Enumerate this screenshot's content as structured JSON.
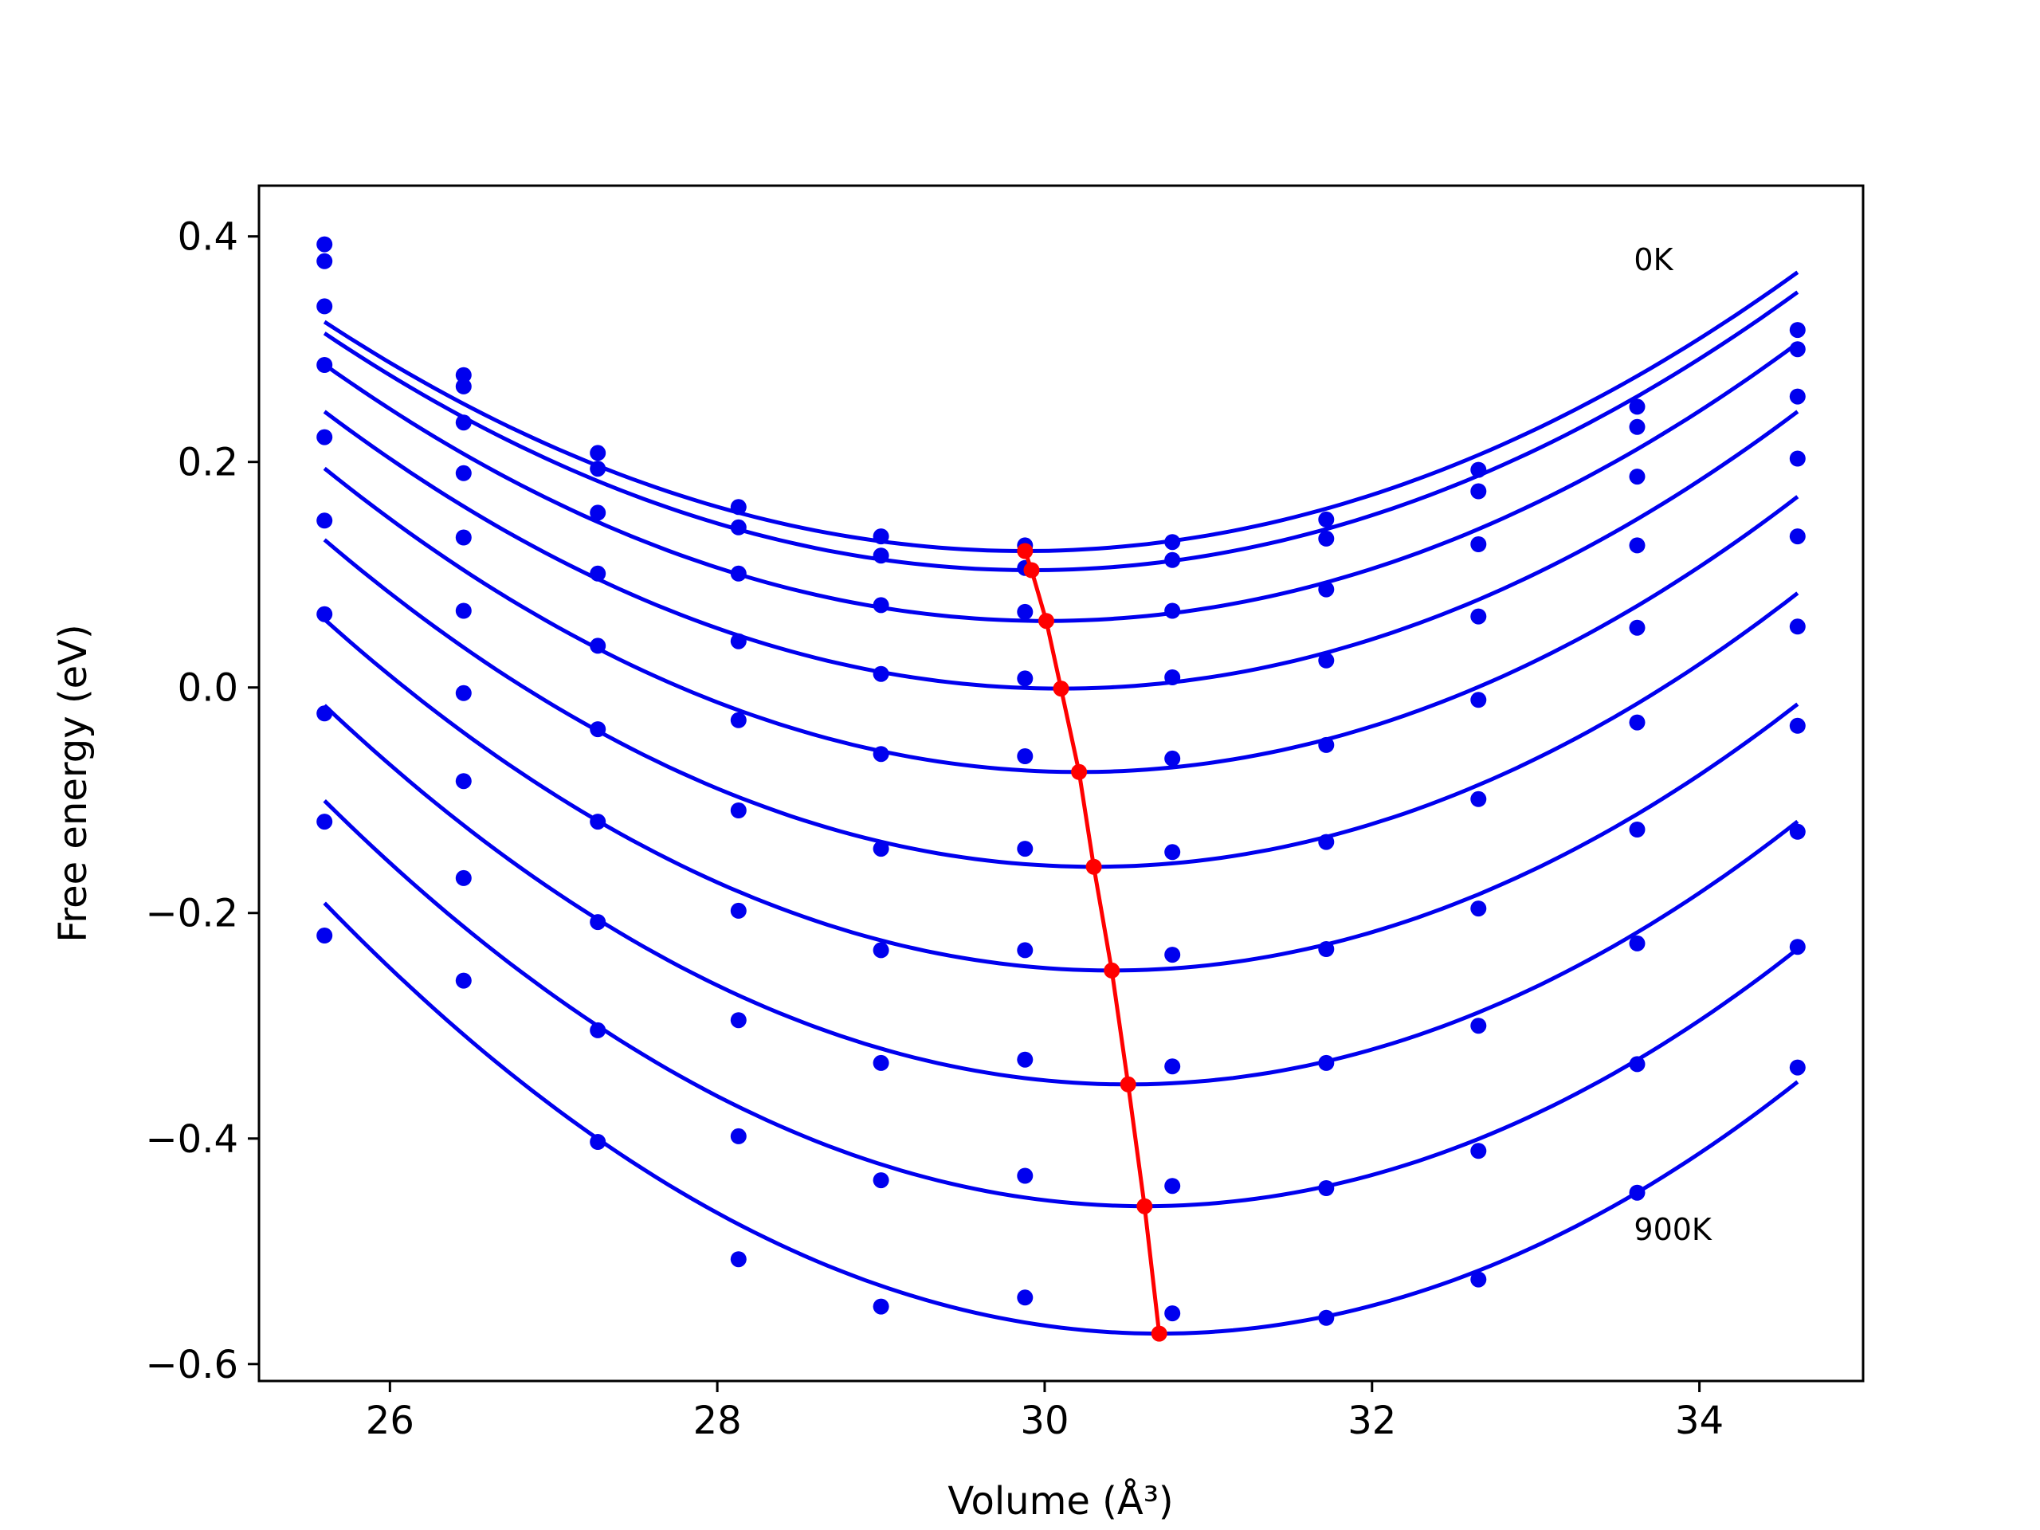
{
  "chart_data": {
    "type": "scatter",
    "xlabel": "Volume (Å³)",
    "ylabel": "Free energy (eV)",
    "xlim": [
      25.2,
      35.0
    ],
    "ylim": [
      -0.615,
      0.445
    ],
    "xticks": [
      26,
      28,
      30,
      32,
      34
    ],
    "xtick_labels": [
      "26",
      "28",
      "30",
      "32",
      "34"
    ],
    "yticks": [
      0.4,
      0.2,
      0.0,
      -0.2,
      -0.4,
      -0.6
    ],
    "ytick_labels": [
      "0.4",
      "0.2",
      "0.0",
      "−0.2",
      "−0.4",
      "−0.6"
    ],
    "grid": false,
    "colors": {
      "points": "#0000ee",
      "fit": "#0000ee",
      "minimum": "#ff0000"
    },
    "annotations": [
      {
        "text": "0K",
        "x": 33.6,
        "y": 0.37
      },
      {
        "text": "900K",
        "x": 33.6,
        "y": -0.49
      }
    ],
    "x": [
      25.6,
      26.45,
      27.27,
      28.13,
      29.0,
      29.88,
      30.78,
      31.72,
      32.65,
      33.62,
      34.6
    ],
    "series": [
      {
        "points": [
          0.393,
          0.277,
          0.208,
          0.16,
          0.134,
          0.126,
          0.129,
          0.149,
          0.193,
          0.249,
          0.317
        ],
        "fit_min": [
          29.88,
          0.121
        ]
      },
      {
        "points": [
          0.378,
          0.267,
          0.194,
          0.142,
          0.117,
          0.106,
          0.113,
          0.132,
          0.174,
          0.231,
          0.3
        ],
        "fit_min": [
          29.92,
          0.104
        ]
      },
      {
        "points": [
          0.338,
          0.235,
          0.155,
          0.101,
          0.073,
          0.067,
          0.068,
          0.087,
          0.127,
          0.187,
          0.258
        ],
        "fit_min": [
          30.01,
          0.059
        ]
      },
      {
        "points": [
          0.286,
          0.19,
          0.101,
          0.041,
          0.012,
          0.008,
          0.009,
          0.024,
          0.063,
          0.126,
          0.203
        ],
        "fit_min": [
          30.1,
          -0.001
        ]
      },
      {
        "points": [
          0.222,
          0.133,
          0.037,
          -0.029,
          -0.059,
          -0.061,
          -0.063,
          -0.051,
          -0.011,
          0.053,
          0.134
        ],
        "fit_min": [
          30.21,
          -0.075
        ]
      },
      {
        "points": [
          0.148,
          0.068,
          -0.037,
          -0.109,
          -0.143,
          -0.143,
          -0.146,
          -0.137,
          -0.099,
          -0.031,
          0.054
        ],
        "fit_min": [
          30.3,
          -0.159
        ]
      },
      {
        "points": [
          0.065,
          -0.005,
          -0.119,
          -0.198,
          -0.233,
          -0.233,
          -0.237,
          -0.232,
          -0.196,
          -0.126,
          -0.034
        ],
        "fit_min": [
          30.41,
          -0.251
        ]
      },
      {
        "points": [
          -0.023,
          -0.083,
          -0.208,
          -0.295,
          -0.333,
          -0.33,
          -0.336,
          -0.333,
          -0.3,
          -0.227,
          -0.128
        ],
        "fit_min": [
          30.51,
          -0.352
        ]
      },
      {
        "points": [
          -0.119,
          -0.169,
          -0.304,
          -0.398,
          -0.437,
          -0.433,
          -0.442,
          -0.444,
          -0.411,
          -0.334,
          -0.23
        ],
        "fit_min": [
          30.61,
          -0.46
        ]
      },
      {
        "points": [
          -0.22,
          -0.26,
          -0.403,
          -0.507,
          -0.549,
          -0.541,
          -0.555,
          -0.559,
          -0.525,
          -0.448,
          -0.337
        ],
        "fit_min": [
          30.7,
          -0.573
        ]
      }
    ],
    "minimum_line": {
      "x": [
        29.88,
        29.92,
        30.01,
        30.1,
        30.21,
        30.3,
        30.41,
        30.51,
        30.61,
        30.7
      ],
      "y": [
        0.121,
        0.104,
        0.059,
        -0.001,
        -0.075,
        -0.159,
        -0.251,
        -0.352,
        -0.46,
        -0.573
      ]
    }
  }
}
